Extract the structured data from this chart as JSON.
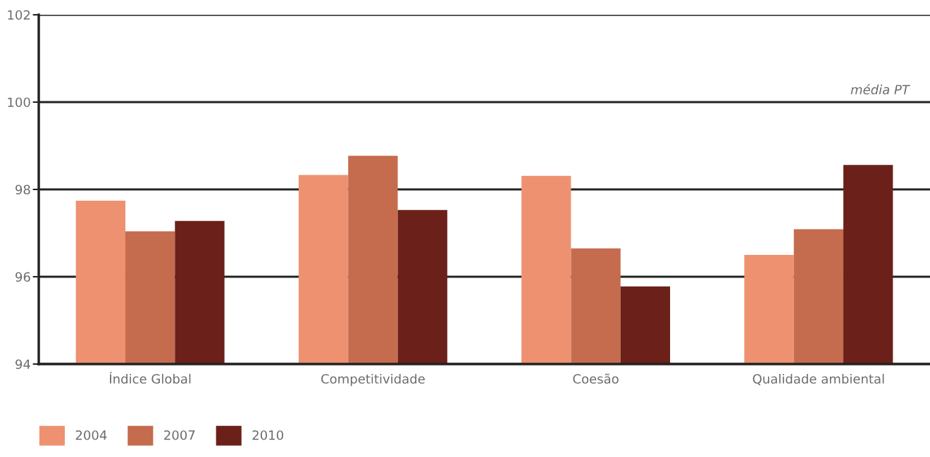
{
  "chart_data": {
    "type": "bar",
    "categories": [
      "Índice Global",
      "Competitividade",
      "Coesão",
      "Qualidade ambiental"
    ],
    "series": [
      {
        "name": "2004",
        "color": "#ee9170",
        "values": [
          97.74,
          98.33,
          98.31,
          96.5
        ]
      },
      {
        "name": "2007",
        "color": "#c56b4e",
        "values": [
          97.04,
          98.77,
          96.65,
          97.09
        ]
      },
      {
        "name": "2010",
        "color": "#6b2019",
        "values": [
          97.28,
          97.53,
          95.78,
          98.56
        ]
      }
    ],
    "ylim": [
      94,
      102
    ],
    "yticks": [
      94,
      96,
      98,
      100,
      102
    ],
    "grid": "y",
    "annotations": [
      "média PT"
    ],
    "legend": "bottom left"
  }
}
